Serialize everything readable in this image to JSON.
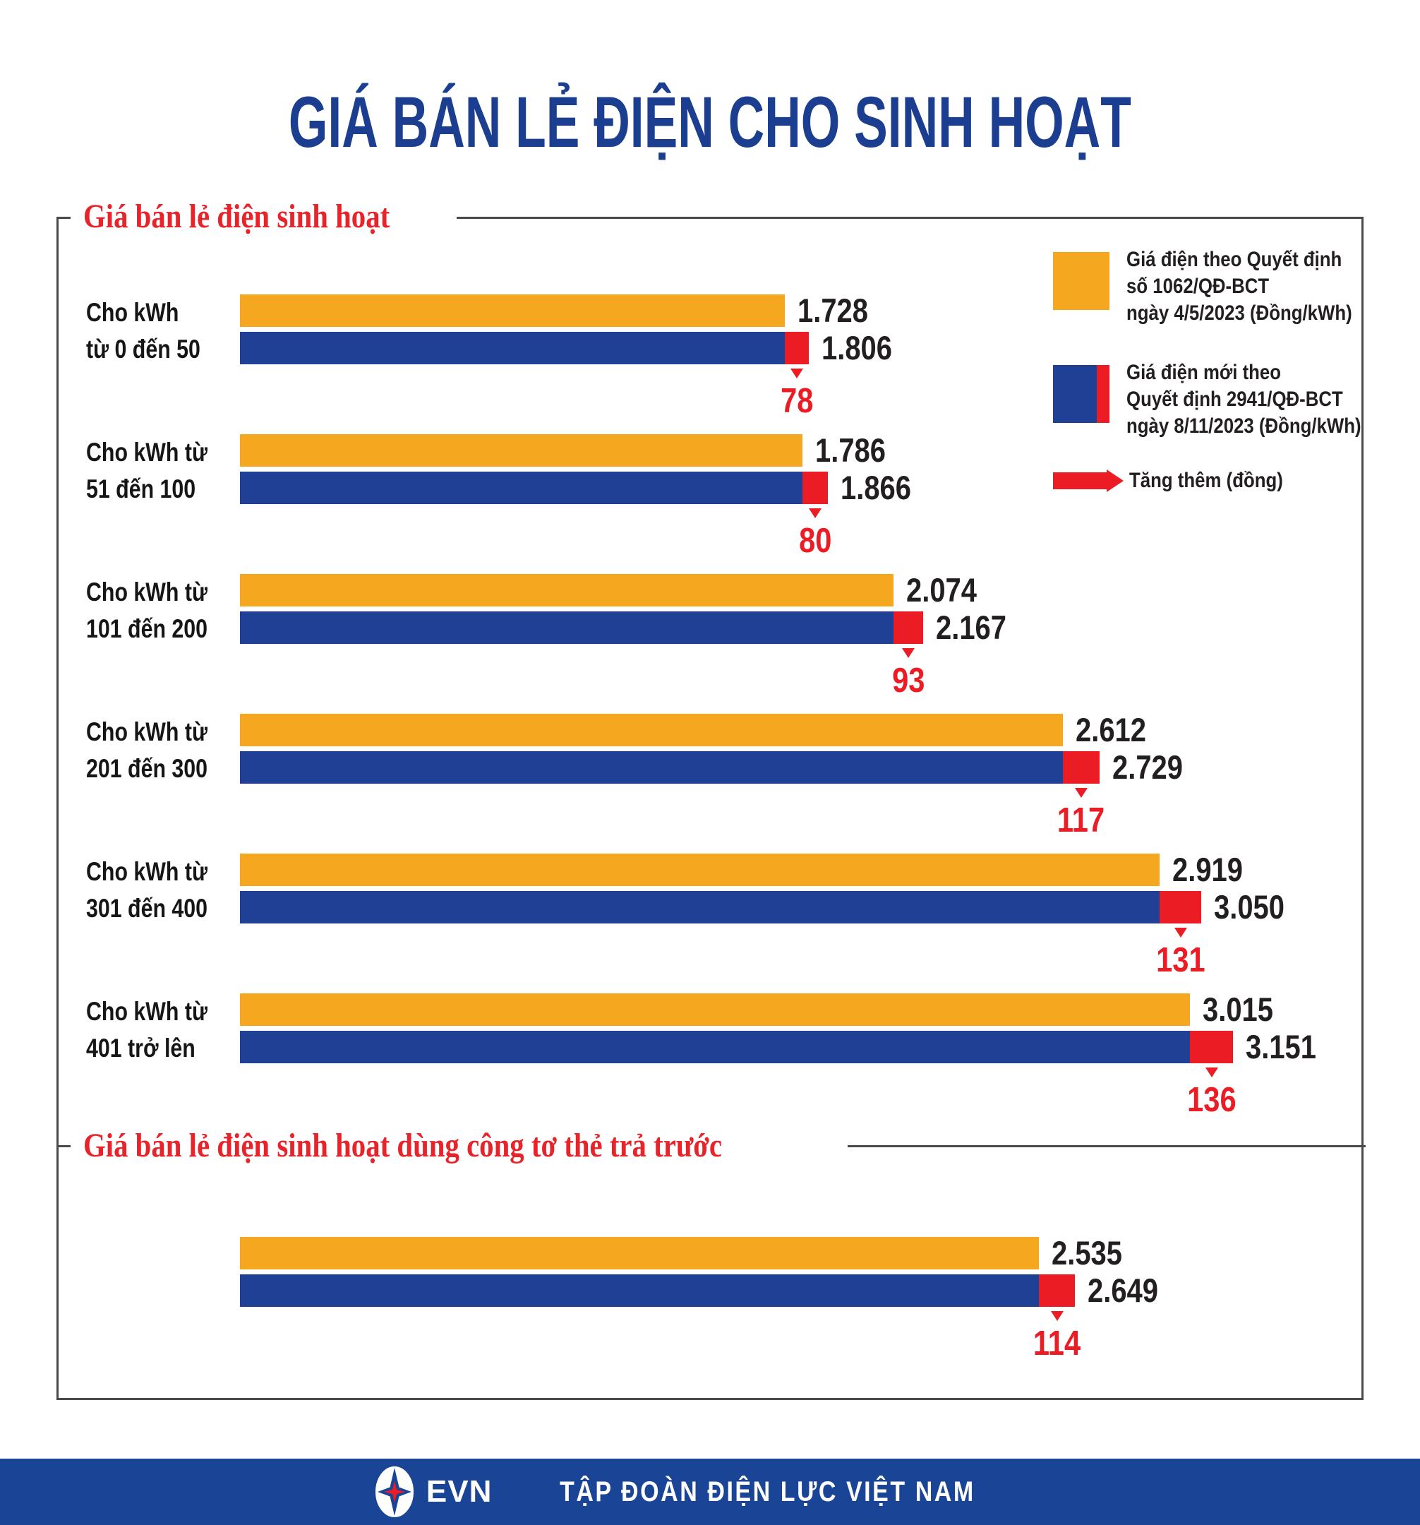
{
  "title": "GIÁ BÁN LẺ ĐIỆN CHO SINH HOẠT",
  "colors": {
    "title_blue": "#1b3e91",
    "heading_red": "#e8232a",
    "old_price_bar": "#f5a71f",
    "new_price_bar": "#1f4094",
    "increase_red": "#ec1c24",
    "value_text": "#231f20",
    "footer_blue": "#1a4496",
    "box_border": "#4a4a4a"
  },
  "legend": [
    {
      "swatch": "old-price",
      "label": "Giá điện theo Quyết định\nsố 1062/QĐ-BCT\nngày 4/5/2023 (Đồng/kWh)"
    },
    {
      "swatch": "new-price",
      "label": "Giá điện mới theo\nQuyết định 2941/QĐ-BCT\nngày 8/11/2023 (Đồng/kWh)"
    },
    {
      "swatch": "increase-arrow",
      "label": "Tăng thêm (đồng)"
    }
  ],
  "chart_data": {
    "type": "bar",
    "orientation": "horizontal",
    "unit": "Đồng/kWh",
    "value_range": [
      0,
      3500
    ],
    "grid": false,
    "legend_position": "top-right",
    "series": [
      {
        "name": "Giá điện theo Quyết định số 1062/QĐ-BCT ngày 4/5/2023 (Đồng/kWh)",
        "color": "#f5a71f"
      },
      {
        "name": "Giá điện mới theo Quyết định 2941/QĐ-BCT ngày 8/11/2023 (Đồng/kWh)",
        "color": "#1f4094"
      },
      {
        "name": "Tăng thêm (đồng)",
        "color": "#ec1c24"
      }
    ],
    "sections": [
      {
        "heading": "Giá bán lẻ điện sinh hoạt",
        "rows": [
          {
            "label_lines": [
              "Cho kWh",
              "từ 0 đến 50"
            ],
            "old": 1728,
            "new": 1806,
            "increase": 78,
            "old_label": "1.728",
            "new_label": "1.806",
            "increase_label": "78"
          },
          {
            "label_lines": [
              "Cho kWh từ",
              "51 đến 100"
            ],
            "old": 1786,
            "new": 1866,
            "increase": 80,
            "old_label": "1.786",
            "new_label": "1.866",
            "increase_label": "80"
          },
          {
            "label_lines": [
              "Cho kWh từ",
              "101 đến 200"
            ],
            "old": 2074,
            "new": 2167,
            "increase": 93,
            "old_label": "2.074",
            "new_label": "2.167",
            "increase_label": "93"
          },
          {
            "label_lines": [
              "Cho kWh từ",
              "201 đến 300"
            ],
            "old": 2612,
            "new": 2729,
            "increase": 117,
            "old_label": "2.612",
            "new_label": "2.729",
            "increase_label": "117"
          },
          {
            "label_lines": [
              "Cho kWh từ",
              "301 đến 400"
            ],
            "old": 2919,
            "new": 3050,
            "increase": 131,
            "old_label": "2.919",
            "new_label": "3.050",
            "increase_label": "131"
          },
          {
            "label_lines": [
              "Cho kWh từ",
              "401 trở lên"
            ],
            "old": 3015,
            "new": 3151,
            "increase": 136,
            "old_label": "3.015",
            "new_label": "3.151",
            "increase_label": "136"
          }
        ]
      },
      {
        "heading": "Giá bán lẻ điện sinh hoạt dùng công tơ thẻ trả trước",
        "rows": [
          {
            "label_lines": [],
            "old": 2535,
            "new": 2649,
            "increase": 114,
            "old_label": "2.535",
            "new_label": "2.649",
            "increase_label": "114"
          }
        ]
      }
    ]
  },
  "footer": {
    "logo_text": "EVN",
    "company": "TẬP ĐOÀN ĐIỆN LỰC VIỆT NAM"
  }
}
